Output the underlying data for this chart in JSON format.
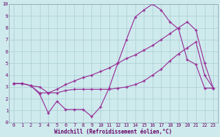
{
  "xlabel": "Windchill (Refroidissement éolien,°C)",
  "xlim": [
    -0.5,
    23.5
  ],
  "ylim": [
    0,
    10
  ],
  "xticks": [
    0,
    1,
    2,
    3,
    4,
    5,
    6,
    7,
    8,
    9,
    10,
    11,
    12,
    13,
    14,
    15,
    16,
    17,
    18,
    19,
    20,
    21,
    22,
    23
  ],
  "yticks": [
    0,
    1,
    2,
    3,
    4,
    5,
    6,
    7,
    8,
    9,
    10
  ],
  "bg_color": "#ceeaed",
  "line_color": "#993399",
  "grid_color": "#a8cdd0",
  "series1_x": [
    0,
    1,
    2,
    3,
    4,
    5,
    6,
    7,
    8,
    9,
    10,
    11,
    12,
    13,
    14,
    15,
    16,
    17,
    18,
    19,
    20,
    21,
    22,
    23
  ],
  "series1_y": [
    3.3,
    3.3,
    3.1,
    2.4,
    0.8,
    1.8,
    1.1,
    1.1,
    1.1,
    0.5,
    1.3,
    2.9,
    5.0,
    7.0,
    8.9,
    9.5,
    10.0,
    9.5,
    8.5,
    7.9,
    5.3,
    4.9,
    2.9,
    2.9
  ],
  "series2_x": [
    0,
    1,
    2,
    3,
    4,
    5,
    6,
    7,
    8,
    9,
    10,
    11,
    12,
    13,
    14,
    15,
    16,
    17,
    18,
    19,
    20,
    21,
    22,
    23
  ],
  "series2_y": [
    3.3,
    3.3,
    3.1,
    3.0,
    2.5,
    2.8,
    3.2,
    3.5,
    3.8,
    4.0,
    4.3,
    4.6,
    5.0,
    5.4,
    5.7,
    6.1,
    6.5,
    7.0,
    7.5,
    8.0,
    8.5,
    7.8,
    5.0,
    2.9
  ],
  "series3_x": [
    0,
    1,
    2,
    3,
    4,
    5,
    6,
    7,
    8,
    9,
    10,
    11,
    12,
    13,
    14,
    15,
    16,
    17,
    18,
    19,
    20,
    21,
    22,
    23
  ],
  "series3_y": [
    3.3,
    3.3,
    3.1,
    2.5,
    2.5,
    2.5,
    2.7,
    2.8,
    2.8,
    2.8,
    2.8,
    2.8,
    2.9,
    3.0,
    3.2,
    3.5,
    4.0,
    4.5,
    5.2,
    5.8,
    6.3,
    6.8,
    4.0,
    2.9
  ]
}
